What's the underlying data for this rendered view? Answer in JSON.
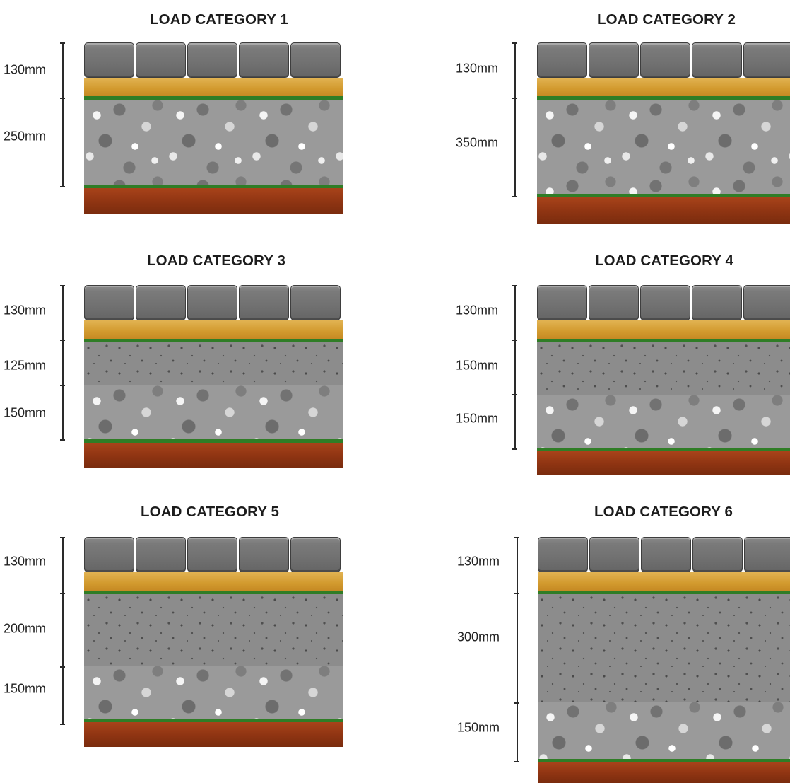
{
  "panels": [
    {
      "title": "LOAD CATEGORY 1",
      "dims": [
        "130mm",
        "250mm"
      ],
      "layers": [
        "sand",
        "membrane",
        "coarse",
        "membrane",
        "subgrade"
      ]
    },
    {
      "title": "LOAD CATEGORY 2",
      "dims": [
        "130mm",
        "350mm"
      ],
      "layers": [
        "sand",
        "membrane",
        "coarse",
        "membrane",
        "subgrade"
      ]
    },
    {
      "title": "LOAD CATEGORY 3",
      "dims": [
        "130mm",
        "125mm",
        "150mm"
      ],
      "layers": [
        "sand",
        "membrane",
        "fine",
        "coarse",
        "membrane",
        "subgrade"
      ]
    },
    {
      "title": "LOAD CATEGORY 4",
      "dims": [
        "130mm",
        "150mm",
        "150mm"
      ],
      "layers": [
        "sand",
        "membrane",
        "fine",
        "coarse",
        "membrane",
        "subgrade"
      ]
    },
    {
      "title": "LOAD CATEGORY 5",
      "dims": [
        "130mm",
        "200mm",
        "150mm"
      ],
      "layers": [
        "sand",
        "membrane",
        "fine",
        "coarse",
        "membrane",
        "subgrade"
      ]
    },
    {
      "title": "LOAD CATEGORY 6",
      "dims": [
        "130mm",
        "300mm",
        "150mm"
      ],
      "layers": [
        "sand",
        "membrane",
        "fine",
        "coarse",
        "membrane",
        "subgrade"
      ]
    }
  ],
  "colors": {
    "paver": "#777777",
    "sand": "#d9a63c",
    "membrane": "#2f7d26",
    "subgrade": "#8e3412",
    "coarse_aggregate": "#9a9a9a",
    "fine_aggregate": "#8c8c8c"
  }
}
